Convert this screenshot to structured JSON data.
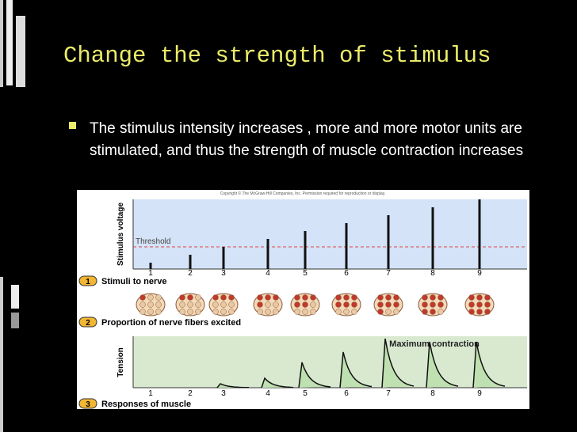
{
  "slide": {
    "title": "Change the strength of stimulus",
    "bullets": [
      "The stimulus intensity increases , more and more motor units are stimulated, and thus the strength of muscle contraction increases"
    ],
    "figure": {
      "copyright": "Copyright © The McGraw-Hill Companies, Inc. Permission required for reproduction or display.",
      "y_label_top": "Stimulus voltage",
      "threshold_label": "Threshold",
      "stimulus_numbers": [
        1,
        2,
        3,
        4,
        5,
        6,
        7,
        8,
        9
      ],
      "y_label_bottom": "Tension",
      "max_label": "Maximum contraction",
      "response_numbers": [
        1,
        2,
        3,
        4,
        5,
        6,
        7,
        8,
        9
      ],
      "steps": [
        {
          "number": "1",
          "label": "Stimuli to nerve"
        },
        {
          "number": "2",
          "label": "Proportion of nerve fibers excited"
        },
        {
          "number": "3",
          "label": "Responses of muscle"
        }
      ]
    }
  }
}
